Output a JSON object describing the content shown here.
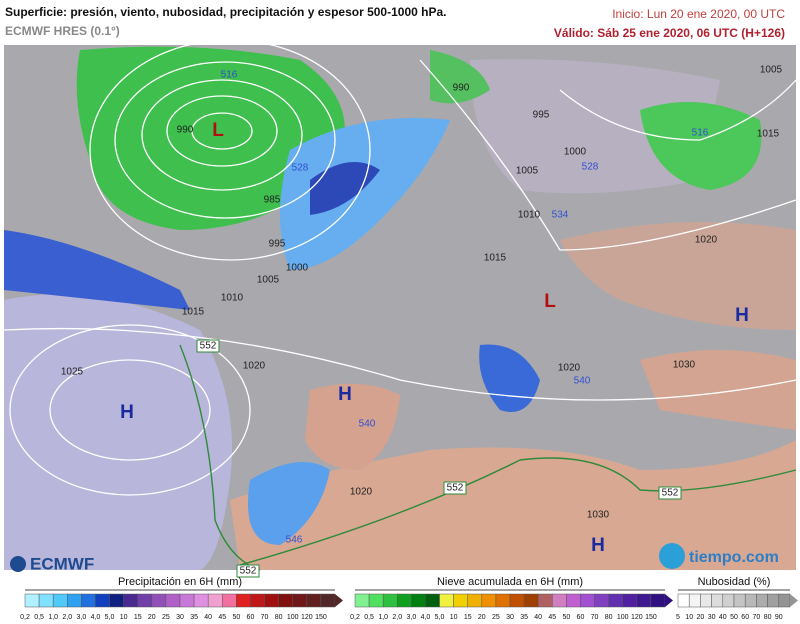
{
  "header": {
    "title": "Superficie: presión, viento, nubosidad, precipitación y espesor 500-1000 hPa.",
    "model": "ECMWF HRES (0.1°)",
    "init": "Inicio: Lun 20 ene 2020, 00 UTC",
    "valid": "Válido: Sáb 25 ene 2020, 06 UTC (H+126)"
  },
  "map": {
    "pressure_labels": [
      "990",
      "985",
      "995",
      "1000",
      "1005",
      "1010",
      "1015",
      "1020",
      "1025",
      "990",
      "995",
      "1000",
      "1005",
      "1010",
      "1015",
      "1020",
      "1005",
      "1015",
      "1020",
      "1030",
      "1020",
      "1030"
    ],
    "thickness_labels": [
      "552",
      "552",
      "552",
      "552",
      "540",
      "546",
      "528",
      "516",
      "528",
      "534",
      "516",
      "540"
    ],
    "centers": [
      "L",
      "L",
      "H",
      "H",
      "H",
      "H"
    ]
  },
  "logos": {
    "left": "ECMWF",
    "right": "tiempo.com"
  },
  "legends": [
    {
      "title": "Precipitación en 6H (mm)",
      "ticks": [
        "0,2",
        "0,5",
        "1,0",
        "2,0",
        "3,0",
        "4,0",
        "5,0",
        "10",
        "15",
        "20",
        "25",
        "30",
        "35",
        "40",
        "45",
        "50",
        "60",
        "70",
        "80",
        "100",
        "120",
        "150"
      ]
    },
    {
      "title": "Nieve acumulada en 6H (mm)",
      "ticks": [
        "0,2",
        "0,5",
        "1,0",
        "2,0",
        "3,0",
        "4,0",
        "5,0",
        "10",
        "15",
        "20",
        "25",
        "30",
        "35",
        "40",
        "45",
        "50",
        "60",
        "70",
        "80",
        "100",
        "120",
        "150"
      ]
    },
    {
      "title": "Nubosidad (%)",
      "ticks": [
        "5",
        "10",
        "20",
        "30",
        "40",
        "50",
        "60",
        "70",
        "80",
        "90"
      ]
    }
  ]
}
